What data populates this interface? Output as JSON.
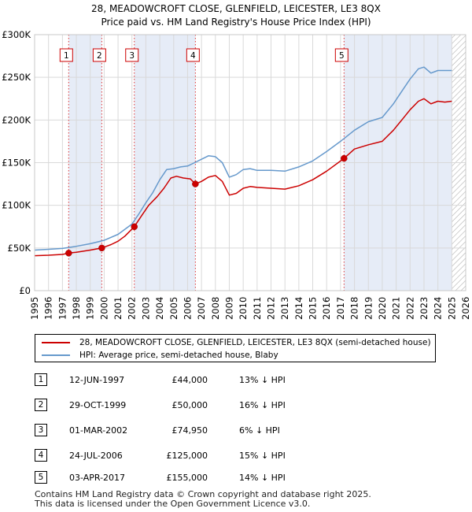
{
  "header": {
    "title": "28, MEADOWCROFT CLOSE, GLENFIELD, LEICESTER, LE3 8QX",
    "subtitle": "Price paid vs. HM Land Registry's House Price Index (HPI)"
  },
  "colors": {
    "red": "#cc0000",
    "blue": "#6699cc",
    "shade": "#e6ecf7",
    "grid": "#d9d9d9",
    "plot_bg": "#eef2fa"
  },
  "chart_data": {
    "type": "line",
    "xlim": [
      1995,
      2026
    ],
    "ylim": [
      0,
      300000
    ],
    "x_ticks": [
      "1995",
      "1996",
      "1997",
      "1998",
      "1999",
      "2000",
      "2001",
      "2002",
      "2003",
      "2004",
      "2005",
      "2006",
      "2007",
      "2008",
      "2009",
      "2010",
      "2011",
      "2012",
      "2013",
      "2014",
      "2015",
      "2016",
      "2017",
      "2018",
      "2019",
      "2020",
      "2021",
      "2022",
      "2023",
      "2024",
      "2025",
      "2026"
    ],
    "y_ticks": [
      {
        "value": 0,
        "label": "£0"
      },
      {
        "value": 50000,
        "label": "£50K"
      },
      {
        "value": 100000,
        "label": "£100K"
      },
      {
        "value": 150000,
        "label": "£150K"
      },
      {
        "value": 200000,
        "label": "£200K"
      },
      {
        "value": 250000,
        "label": "£250K"
      },
      {
        "value": 300000,
        "label": "£300K"
      }
    ],
    "shaded_periods": [
      [
        1997.45,
        1999.83
      ],
      [
        2002.17,
        2006.56
      ],
      [
        2017.25,
        2025.0
      ]
    ],
    "hatched_from": 2025.0,
    "series": [
      {
        "name": "28, MEADOWCROFT CLOSE, GLENFIELD, LEICESTER, LE3 8QX (semi-detached house)",
        "color": "#cc0000",
        "points": [
          [
            1995.0,
            41000
          ],
          [
            1996.0,
            41500
          ],
          [
            1997.0,
            42500
          ],
          [
            1997.45,
            44000
          ],
          [
            1998.0,
            45000
          ],
          [
            1999.0,
            47500
          ],
          [
            1999.83,
            50000
          ],
          [
            2000.5,
            54000
          ],
          [
            2001.0,
            58000
          ],
          [
            2001.5,
            64000
          ],
          [
            2002.17,
            74950
          ],
          [
            2002.7,
            88000
          ],
          [
            2003.2,
            100000
          ],
          [
            2003.8,
            110000
          ],
          [
            2004.3,
            120000
          ],
          [
            2004.8,
            132000
          ],
          [
            2005.2,
            134000
          ],
          [
            2005.7,
            132000
          ],
          [
            2006.2,
            131000
          ],
          [
            2006.56,
            125000
          ],
          [
            2007.0,
            128000
          ],
          [
            2007.5,
            133000
          ],
          [
            2008.0,
            135000
          ],
          [
            2008.5,
            128000
          ],
          [
            2009.0,
            112000
          ],
          [
            2009.5,
            114000
          ],
          [
            2010.0,
            120000
          ],
          [
            2010.5,
            122000
          ],
          [
            2011.0,
            121000
          ],
          [
            2012.0,
            120000
          ],
          [
            2013.0,
            119000
          ],
          [
            2014.0,
            123000
          ],
          [
            2015.0,
            130000
          ],
          [
            2016.0,
            140000
          ],
          [
            2017.25,
            155000
          ],
          [
            2018.0,
            166000
          ],
          [
            2019.0,
            171000
          ],
          [
            2020.0,
            175000
          ],
          [
            2020.8,
            188000
          ],
          [
            2021.5,
            202000
          ],
          [
            2022.0,
            212000
          ],
          [
            2022.6,
            222000
          ],
          [
            2023.0,
            225000
          ],
          [
            2023.5,
            219000
          ],
          [
            2024.0,
            222000
          ],
          [
            2024.5,
            221000
          ],
          [
            2025.0,
            222000
          ]
        ],
        "markers": [
          [
            1997.45,
            44000
          ],
          [
            1999.83,
            50000
          ],
          [
            2002.17,
            74950
          ],
          [
            2006.56,
            125000
          ],
          [
            2017.25,
            155000
          ]
        ]
      },
      {
        "name": "HPI: Average price, semi-detached house, Blaby",
        "color": "#6699cc",
        "points": [
          [
            1995.0,
            47500
          ],
          [
            1996.0,
            48500
          ],
          [
            1997.0,
            49500
          ],
          [
            1998.0,
            52000
          ],
          [
            1999.0,
            55000
          ],
          [
            2000.0,
            59000
          ],
          [
            2001.0,
            66000
          ],
          [
            2002.0,
            78000
          ],
          [
            2002.5,
            90000
          ],
          [
            2003.0,
            103000
          ],
          [
            2003.5,
            115000
          ],
          [
            2004.0,
            130000
          ],
          [
            2004.5,
            142000
          ],
          [
            2005.0,
            143000
          ],
          [
            2005.5,
            145000
          ],
          [
            2006.0,
            146000
          ],
          [
            2006.5,
            150000
          ],
          [
            2007.0,
            154000
          ],
          [
            2007.5,
            158000
          ],
          [
            2008.0,
            157000
          ],
          [
            2008.5,
            150000
          ],
          [
            2009.0,
            133000
          ],
          [
            2009.5,
            136000
          ],
          [
            2010.0,
            142000
          ],
          [
            2010.5,
            143000
          ],
          [
            2011.0,
            141000
          ],
          [
            2012.0,
            141000
          ],
          [
            2013.0,
            140000
          ],
          [
            2014.0,
            145000
          ],
          [
            2015.0,
            152000
          ],
          [
            2016.0,
            163000
          ],
          [
            2017.0,
            175000
          ],
          [
            2018.0,
            188000
          ],
          [
            2019.0,
            198000
          ],
          [
            2020.0,
            203000
          ],
          [
            2020.8,
            219000
          ],
          [
            2021.5,
            236000
          ],
          [
            2022.0,
            248000
          ],
          [
            2022.6,
            260000
          ],
          [
            2023.0,
            262000
          ],
          [
            2023.5,
            255000
          ],
          [
            2024.0,
            258000
          ],
          [
            2024.5,
            258000
          ],
          [
            2025.0,
            258000
          ]
        ]
      }
    ]
  },
  "sales": [
    {
      "num": "1",
      "date": "12-JUN-1997",
      "price": "£44,000",
      "hpi": "13% ↓ HPI",
      "x": 1997.45
    },
    {
      "num": "2",
      "date": "29-OCT-1999",
      "price": "£50,000",
      "hpi": "16% ↓ HPI",
      "x": 1999.83
    },
    {
      "num": "3",
      "date": "01-MAR-2002",
      "price": "£74,950",
      "hpi": "6% ↓ HPI",
      "x": 2002.17
    },
    {
      "num": "4",
      "date": "24-JUL-2006",
      "price": "£125,000",
      "hpi": "15% ↓ HPI",
      "x": 2006.56
    },
    {
      "num": "5",
      "date": "03-APR-2017",
      "price": "£155,000",
      "hpi": "14% ↓ HPI",
      "x": 2017.25
    }
  ],
  "legend": {
    "red_label": "28, MEADOWCROFT CLOSE, GLENFIELD, LEICESTER, LE3 8QX (semi-detached house)",
    "blue_label": "HPI: Average price, semi-detached house, Blaby"
  },
  "footer": {
    "line1": "Contains HM Land Registry data © Crown copyright and database right 2025.",
    "line2": "This data is licensed under the Open Government Licence v3.0."
  }
}
